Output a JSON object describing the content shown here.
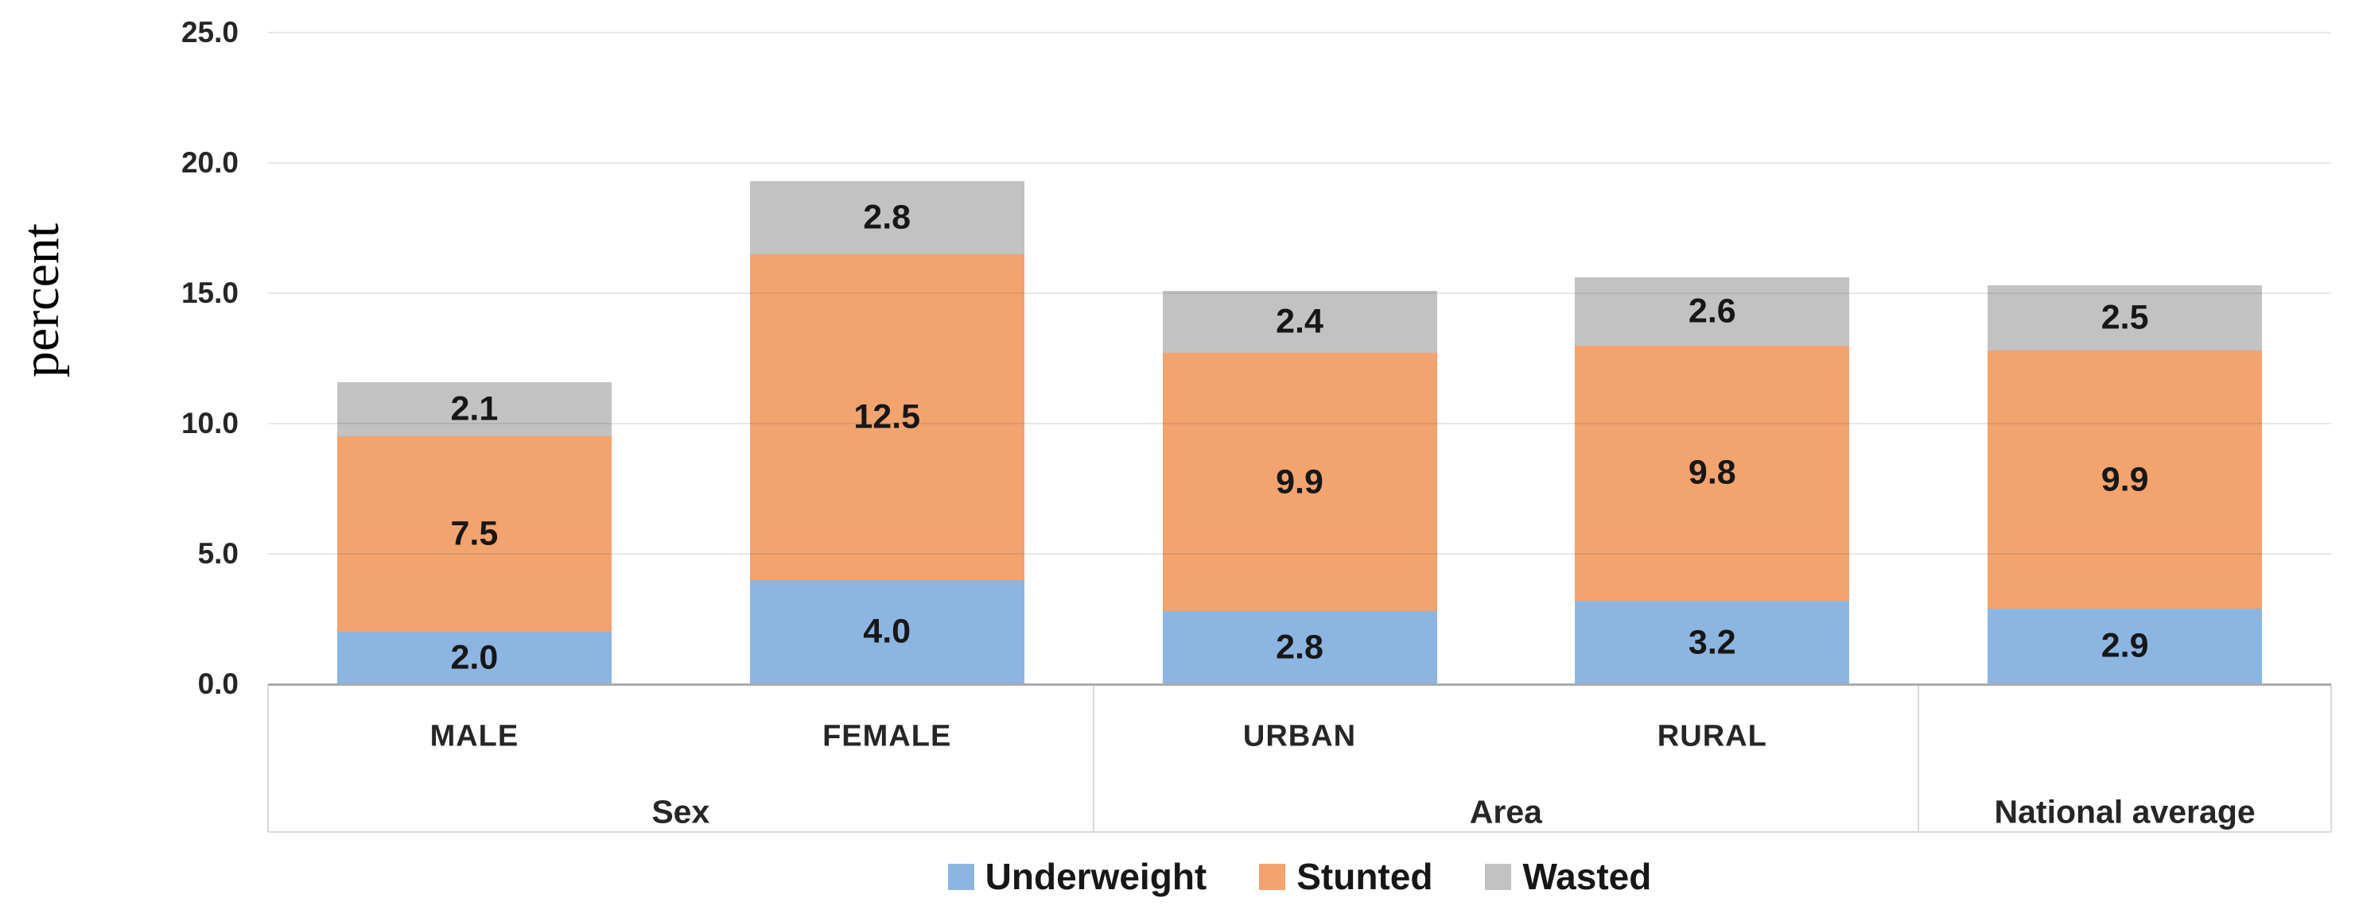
{
  "chart_data": {
    "type": "bar",
    "stacked": true,
    "title": "",
    "ylabel": "percent",
    "xlabel": "",
    "ylim": [
      0,
      25
    ],
    "grid": true,
    "legend_position": "bottom",
    "ytick_values": [
      25,
      20,
      15,
      10,
      5,
      0
    ],
    "ytick_labels": [
      "25.0",
      "20.0",
      "15.0",
      "10.0",
      "5.0",
      "0.0"
    ],
    "groups": [
      {
        "label": "Sex",
        "categories": [
          "MALE",
          "FEMALE"
        ]
      },
      {
        "label": "Area",
        "categories": [
          "URBAN",
          "RURAL"
        ]
      },
      {
        "label": "National average",
        "categories": [
          ""
        ]
      }
    ],
    "series": [
      {
        "name": "Underweight",
        "color": "#8CB5E2",
        "values": [
          2.0,
          4.0,
          2.8,
          3.2,
          2.9
        ],
        "labels": [
          "2.0",
          "4.0",
          "2.8",
          "3.2",
          "2.9"
        ]
      },
      {
        "name": "Stunted",
        "color": "#F2A36E",
        "values": [
          7.5,
          12.5,
          9.9,
          9.8,
          9.9
        ],
        "labels": [
          "7.5",
          "12.5",
          "9.9",
          "9.8",
          "9.9"
        ]
      },
      {
        "name": "Wasted",
        "color": "#C2C2C2",
        "values": [
          2.1,
          2.8,
          2.4,
          2.6,
          2.5
        ],
        "labels": [
          "2.1",
          "2.8",
          "2.4",
          "2.6",
          "2.5"
        ]
      }
    ],
    "totals": [
      11.6,
      19.3,
      15.1,
      15.6,
      15.3
    ]
  },
  "colors": {
    "background": "#FFFFFF",
    "gridline_over_bars": "rgba(100,100,100,0.16)",
    "axis_line": "#ABABAB",
    "category_box_border": "#D9D9D9",
    "text": "#171717"
  }
}
